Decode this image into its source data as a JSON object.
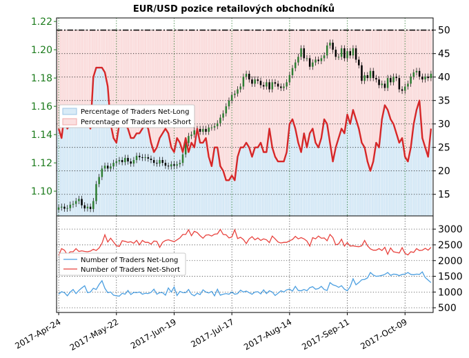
{
  "colors": {
    "price": "#2e7d32",
    "pct_long_fill": "#d9ebf7",
    "pct_long_edge": "#9cc6e6",
    "pct_short_fill": "#fbe0e0",
    "pct_short_edge": "#f0a9a9",
    "pct_line": "#d62728",
    "count_long": "#4a9ee0",
    "count_short": "#e8413c",
    "left_axis": "#1a7a1a"
  },
  "chart_data": [
    {
      "type": "line",
      "title": "EUR/USD pozice retailových obchodníků",
      "left_axis": {
        "ticks": [
          1.1,
          1.12,
          1.14,
          1.16,
          1.18,
          1.2,
          1.22
        ],
        "labels": [
          "1.10",
          "1.12",
          "1.14",
          "1.16",
          "1.18",
          "1.20",
          "1.22"
        ],
        "ylim": [
          1.0825,
          1.2225
        ]
      },
      "right_axis": {
        "ticks": [
          15,
          20,
          25,
          30,
          35,
          40,
          45,
          50
        ],
        "labels": [
          "15",
          "20",
          "25",
          "30",
          "35",
          "40",
          "45",
          "50"
        ],
        "ylim": [
          10.4,
          52.6
        ]
      },
      "x_ticks": [
        "2017-Apr-24",
        "2017-May-22",
        "2017-Jun-19",
        "2017-Jul-17",
        "2017-Aug-14",
        "2017-Sep-11",
        "2017-Oct-09"
      ],
      "reference_line": 50,
      "legend": [
        "Percentage of Traders Net-Long",
        "Percentage of Traders Net-Short"
      ],
      "legend_position": "center-left",
      "series": [
        {
          "kind": "price_candles",
          "note_x": "trading day index 0..129",
          "values": [
            1.0884,
            1.089,
            1.0876,
            1.088,
            1.0904,
            1.091,
            1.093,
            1.0945,
            1.09,
            1.0878,
            1.089,
            1.0874,
            1.093,
            1.105,
            1.11,
            1.116,
            1.118,
            1.116,
            1.1175,
            1.12,
            1.121,
            1.122,
            1.1205,
            1.1235,
            1.121,
            1.1195,
            1.122,
            1.125,
            1.124,
            1.1235,
            1.124,
            1.123,
            1.122,
            1.12,
            1.1195,
            1.122,
            1.12,
            1.118,
            1.1175,
            1.119,
            1.118,
            1.119,
            1.12,
            1.126,
            1.134,
            1.139,
            1.14,
            1.143,
            1.144,
            1.142,
            1.144,
            1.142,
            1.145,
            1.145,
            1.146,
            1.148,
            1.152,
            1.155,
            1.16,
            1.164,
            1.168,
            1.169,
            1.172,
            1.174,
            1.181,
            1.183,
            1.179,
            1.176,
            1.179,
            1.178,
            1.175,
            1.174,
            1.177,
            1.172,
            1.177,
            1.176,
            1.174,
            1.173,
            1.174,
            1.177,
            1.182,
            1.187,
            1.191,
            1.195,
            1.201,
            1.194,
            1.194,
            1.188,
            1.191,
            1.193,
            1.192,
            1.194,
            1.196,
            1.203,
            1.205,
            1.2,
            1.195,
            1.195,
            1.201,
            1.194,
            1.199,
            1.196,
            1.201,
            1.193,
            1.189,
            1.178,
            1.182,
            1.18,
            1.185,
            1.18,
            1.179,
            1.175,
            1.176,
            1.173,
            1.18,
            1.177,
            1.181,
            1.18,
            1.172,
            1.171,
            1.174,
            1.176,
            1.181,
            1.184,
            1.185,
            1.181,
            1.179,
            1.181,
            1.18,
            1.183
          ]
        },
        {
          "name": "Percentage of Traders Net-Long",
          "values": [
            29,
            27,
            32,
            29,
            30,
            30,
            32,
            31,
            33,
            30,
            31,
            29,
            40,
            42,
            42,
            42,
            41,
            38,
            30,
            27,
            26,
            30,
            32,
            30,
            29,
            27,
            27,
            28,
            28,
            29,
            30,
            29,
            26,
            24,
            25,
            27,
            28,
            29,
            28,
            25,
            24,
            27,
            26,
            24,
            27,
            24,
            26,
            25,
            29,
            26,
            26,
            27,
            23,
            21,
            25,
            25,
            21,
            20,
            18,
            18,
            19,
            18,
            23,
            25,
            25,
            26,
            25,
            23,
            25,
            25,
            26,
            24,
            24,
            29,
            25,
            23,
            22,
            22,
            22,
            24,
            30,
            31,
            29,
            26,
            24,
            28,
            25,
            28,
            29,
            26,
            25,
            27,
            31,
            30,
            26,
            22,
            25,
            27,
            29,
            28,
            32,
            30,
            33,
            31,
            29,
            26,
            25,
            22,
            20,
            22,
            26,
            25,
            31,
            34,
            33,
            31,
            30,
            28,
            26,
            27,
            23,
            22,
            25,
            30,
            33,
            35,
            27,
            25,
            23,
            29
          ]
        }
      ]
    },
    {
      "type": "line",
      "right_axis": {
        "ticks": [
          500,
          1000,
          1500,
          2000,
          2500,
          3000
        ],
        "labels": [
          "500",
          "1000",
          "1500",
          "2000",
          "2500",
          "3000"
        ],
        "ylim": [
          350,
          3420
        ]
      },
      "legend": [
        "Number of Traders Net-Long",
        "Number of Traders Net-Short"
      ],
      "legend_position": "center-left",
      "series": [
        {
          "name": "Number of Traders Net-Long",
          "values": [
            930,
            1010,
            980,
            880,
            1000,
            1080,
            950,
            1050,
            1130,
            1200,
            980,
            1000,
            1120,
            1080,
            1240,
            1360,
            1120,
            980,
            1000,
            900,
            880,
            870,
            960,
            930,
            1050,
            920,
            990,
            980,
            1000,
            930,
            960,
            950,
            990,
            1090,
            930,
            980,
            980,
            900,
            1130,
            1000,
            1160,
            890,
            1020,
            980,
            980,
            1080,
            930,
            880,
            960,
            920,
            1070,
            1000,
            970,
            1020,
            880,
            1090,
            900,
            930,
            950,
            930,
            1000,
            930,
            950,
            1060,
            1000,
            1030,
            980,
            930,
            1000,
            1010,
            940,
            1070,
            950,
            1040,
            1000,
            890,
            960,
            1040,
            1000,
            1070,
            1090,
            1030,
            1180,
            1050,
            1040,
            1080,
            1040,
            1140,
            1170,
            1090,
            1110,
            1180,
            1080,
            1050,
            1300,
            1230,
            1200,
            1150,
            1200,
            1090,
            1040,
            1170,
            1420,
            1230,
            1300,
            1390,
            1400,
            1450,
            1620,
            1540,
            1500,
            1510,
            1530,
            1560,
            1620,
            1530,
            1570,
            1560,
            1520,
            1560,
            1570,
            1620,
            1560,
            1550,
            1570,
            1560,
            1640,
            1460,
            1380,
            1300
          ]
        },
        {
          "name": "Number of Traders Net-Short",
          "values": [
            2160,
            2380,
            2330,
            2180,
            2280,
            2280,
            2380,
            2290,
            2310,
            2290,
            2280,
            2300,
            2360,
            2320,
            2400,
            2550,
            2820,
            2590,
            2710,
            2590,
            2470,
            2450,
            2630,
            2610,
            2580,
            2600,
            2550,
            2640,
            2500,
            2640,
            2580,
            2580,
            2520,
            2620,
            2610,
            2420,
            2580,
            2640,
            2660,
            2630,
            2600,
            2660,
            2720,
            2830,
            2830,
            2980,
            2790,
            2930,
            2890,
            2790,
            2710,
            2810,
            2820,
            2780,
            2840,
            2850,
            2990,
            2830,
            2820,
            2720,
            2750,
            2980,
            2700,
            2740,
            2670,
            2540,
            2690,
            2760,
            2660,
            2720,
            2640,
            2690,
            2660,
            2570,
            2780,
            2690,
            2590,
            2560,
            2580,
            2580,
            2630,
            2670,
            2770,
            2690,
            2730,
            2690,
            2620,
            2460,
            2730,
            2690,
            2780,
            2710,
            2720,
            2630,
            2830,
            2730,
            2500,
            2530,
            2680,
            2460,
            2570,
            2460,
            2470,
            2450,
            2440,
            2470,
            2640,
            2470,
            2370,
            2330,
            2330,
            2380,
            2320,
            2420,
            2200,
            2400,
            2280,
            2260,
            2240,
            2410,
            2230,
            2180,
            2280,
            2260,
            2380,
            2320,
            2330,
            2390,
            2330,
            2420
          ]
        }
      ]
    }
  ]
}
